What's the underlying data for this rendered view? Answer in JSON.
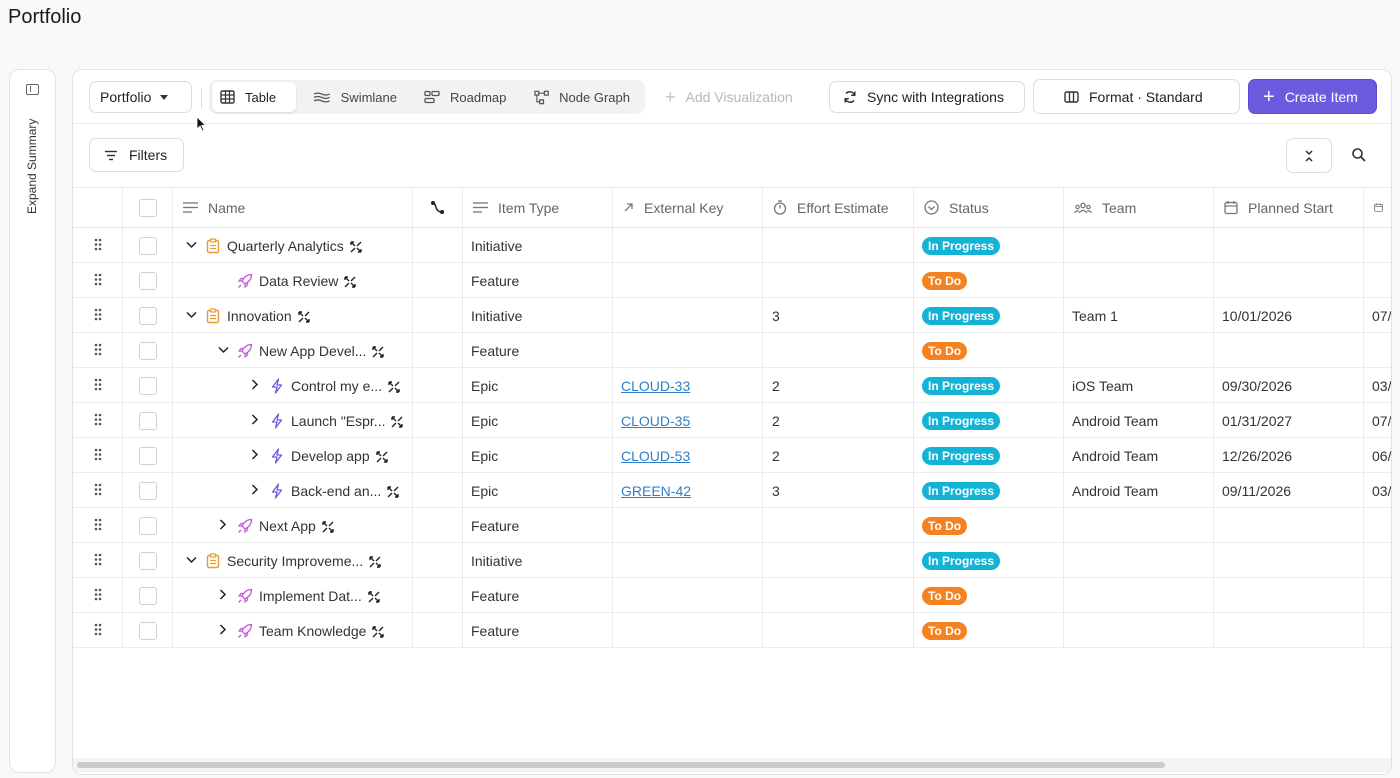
{
  "page": {
    "title": "Portfolio"
  },
  "summary_rail": {
    "label": "Expand Summary"
  },
  "toolbar": {
    "portfolio_select": "Portfolio",
    "views": [
      {
        "label": "Table",
        "icon": "table-icon",
        "active": true
      },
      {
        "label": "Swimlane",
        "icon": "swimlane-icon",
        "active": false
      },
      {
        "label": "Roadmap",
        "icon": "roadmap-icon",
        "active": false
      },
      {
        "label": "Node Graph",
        "icon": "node-graph-icon",
        "active": false
      }
    ],
    "add_visualization": "Add Visualization",
    "sync": "Sync with Integrations",
    "format": "Format · Standard",
    "create": "Create Item",
    "filters": "Filters"
  },
  "columns": {
    "name": "Name",
    "item_type": "Item Type",
    "external_key": "External Key",
    "effort": "Effort Estimate",
    "status": "Status",
    "team": "Team",
    "planned_start": "Planned Start"
  },
  "colors": {
    "accent": "#6b5bdf",
    "in_progress": "#13b3d6",
    "to_do": "#f58220",
    "link": "#2f80c8"
  },
  "rows": [
    {
      "name": "Quarterly Analytics",
      "level": 0,
      "twist": "down",
      "icon": "initiative-icon",
      "type": "Initiative",
      "ext": "",
      "effort": "",
      "status": "In Progress",
      "team": "",
      "start": "",
      "end": ""
    },
    {
      "name": "Data Review",
      "level": 1,
      "twist": "none",
      "icon": "feature-icon",
      "type": "Feature",
      "ext": "",
      "effort": "",
      "status": "To Do",
      "team": "",
      "start": "",
      "end": ""
    },
    {
      "name": "Innovation",
      "level": 0,
      "twist": "down",
      "icon": "initiative-icon",
      "type": "Initiative",
      "ext": "",
      "effort": "3",
      "status": "In Progress",
      "team": "Team 1",
      "start": "10/01/2026",
      "end": "07/"
    },
    {
      "name": "New App Devel...",
      "level": 1,
      "twist": "down",
      "icon": "feature-icon",
      "type": "Feature",
      "ext": "",
      "effort": "",
      "status": "To Do",
      "team": "",
      "start": "",
      "end": ""
    },
    {
      "name": "Control my e...",
      "level": 2,
      "twist": "right",
      "icon": "epic-icon",
      "type": "Epic",
      "ext": "CLOUD-33",
      "effort": "2",
      "status": "In Progress",
      "team": "iOS Team",
      "start": "09/30/2026",
      "end": "03/"
    },
    {
      "name": "Launch \"Espr...",
      "level": 2,
      "twist": "right",
      "icon": "epic-icon",
      "type": "Epic",
      "ext": "CLOUD-35",
      "effort": "2",
      "status": "In Progress",
      "team": "Android Team",
      "start": "01/31/2027",
      "end": "07/"
    },
    {
      "name": "Develop app",
      "level": 2,
      "twist": "right",
      "icon": "epic-icon",
      "type": "Epic",
      "ext": "CLOUD-53",
      "effort": "2",
      "status": "In Progress",
      "team": "Android Team",
      "start": "12/26/2026",
      "end": "06/"
    },
    {
      "name": "Back-end an...",
      "level": 2,
      "twist": "right",
      "icon": "epic-icon",
      "type": "Epic",
      "ext": "GREEN-42",
      "effort": "3",
      "status": "In Progress",
      "team": "Android Team",
      "start": "09/11/2026",
      "end": "03/"
    },
    {
      "name": "Next App",
      "level": 1,
      "twist": "right",
      "icon": "feature-icon",
      "type": "Feature",
      "ext": "",
      "effort": "",
      "status": "To Do",
      "team": "",
      "start": "",
      "end": ""
    },
    {
      "name": "Security Improveme...",
      "level": 0,
      "twist": "down",
      "icon": "initiative-icon",
      "type": "Initiative",
      "ext": "",
      "effort": "",
      "status": "In Progress",
      "team": "",
      "start": "",
      "end": ""
    },
    {
      "name": "Implement Dat...",
      "level": 1,
      "twist": "right",
      "icon": "feature-icon",
      "type": "Feature",
      "ext": "",
      "effort": "",
      "status": "To Do",
      "team": "",
      "start": "",
      "end": ""
    },
    {
      "name": "Team Knowledge",
      "level": 1,
      "twist": "right",
      "icon": "feature-icon",
      "type": "Feature",
      "ext": "",
      "effort": "",
      "status": "To Do",
      "team": "",
      "start": "",
      "end": ""
    }
  ]
}
